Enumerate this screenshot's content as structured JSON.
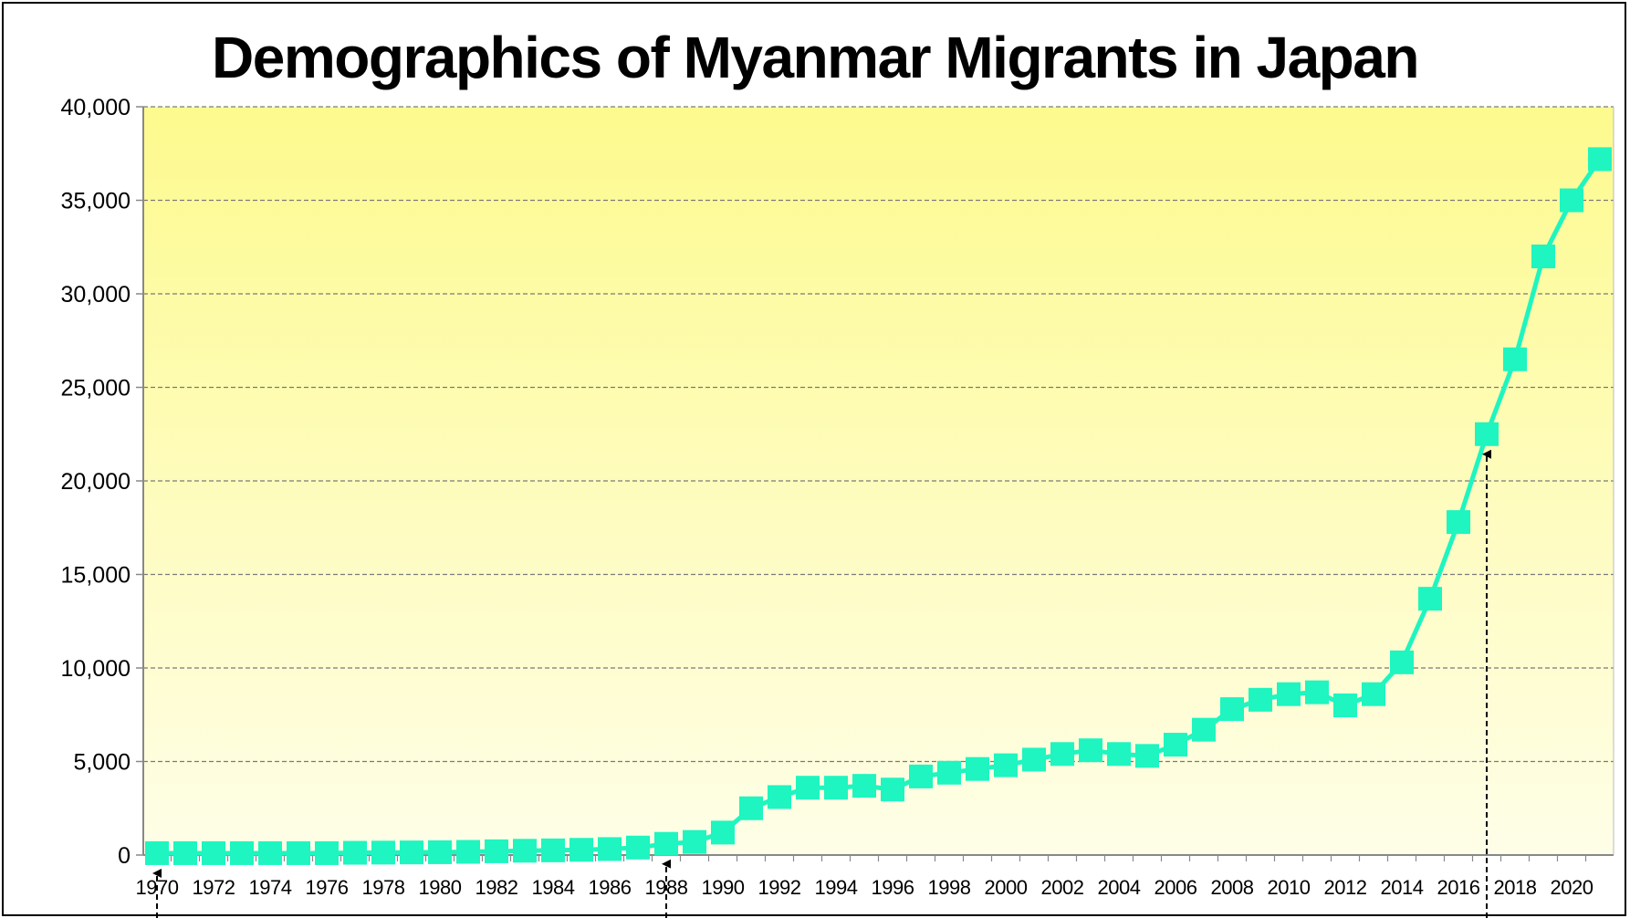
{
  "chart_data": {
    "type": "line",
    "title": "Demographics of Myanmar Migrants in Japan",
    "xlabel": "",
    "ylabel": "",
    "xlim": [
      1970,
      2021
    ],
    "ylim": [
      0,
      40000
    ],
    "y_ticks": [
      0,
      5000,
      10000,
      15000,
      20000,
      25000,
      30000,
      35000,
      40000
    ],
    "y_tick_labels": [
      "0",
      "5,000",
      "10,000",
      "15,000",
      "20,000",
      "25,000",
      "30,000",
      "35,000",
      "40,000"
    ],
    "x_tick_labels": [
      "1970",
      "1972",
      "1974",
      "1976",
      "1978",
      "1980",
      "1982",
      "1984",
      "1986",
      "1988",
      "1990",
      "1992",
      "1994",
      "1996",
      "1998",
      "2000",
      "2002",
      "2004",
      "2006",
      "2008",
      "2010",
      "2012",
      "2014",
      "2016",
      "2018",
      "2020"
    ],
    "grid": true,
    "legend": "none",
    "background_gradient": [
      "#fdfa8e",
      "#fefee8"
    ],
    "series": [
      {
        "color": "#1ef5c0",
        "marker": "square",
        "x": [
          1970,
          1971,
          1972,
          1973,
          1974,
          1975,
          1976,
          1977,
          1978,
          1979,
          1980,
          1981,
          1982,
          1983,
          1984,
          1985,
          1986,
          1987,
          1988,
          1989,
          1990,
          1991,
          1992,
          1993,
          1994,
          1995,
          1996,
          1997,
          1998,
          1999,
          2000,
          2001,
          2002,
          2003,
          2004,
          2005,
          2006,
          2007,
          2008,
          2009,
          2010,
          2011,
          2012,
          2013,
          2014,
          2015,
          2016,
          2017,
          2018,
          2019,
          2020,
          2021
        ],
        "values": [
          100,
          100,
          100,
          100,
          100,
          100,
          100,
          120,
          130,
          140,
          150,
          170,
          200,
          230,
          250,
          280,
          320,
          400,
          600,
          700,
          1200,
          2500,
          3100,
          3600,
          3600,
          3700,
          3500,
          4200,
          4400,
          4600,
          4800,
          5100,
          5400,
          5600,
          5400,
          5300,
          5900,
          6700,
          7800,
          8300,
          8600,
          8700,
          8000,
          8600,
          10300,
          13700,
          17800,
          22500,
          26500,
          32000,
          35000,
          37200
        ]
      }
    ],
    "annotations": [
      {
        "type": "dashed-arrow",
        "x": 1970
      },
      {
        "type": "dashed-arrow",
        "x": 1988
      },
      {
        "type": "dashed-arrow",
        "x": 2017
      }
    ]
  }
}
